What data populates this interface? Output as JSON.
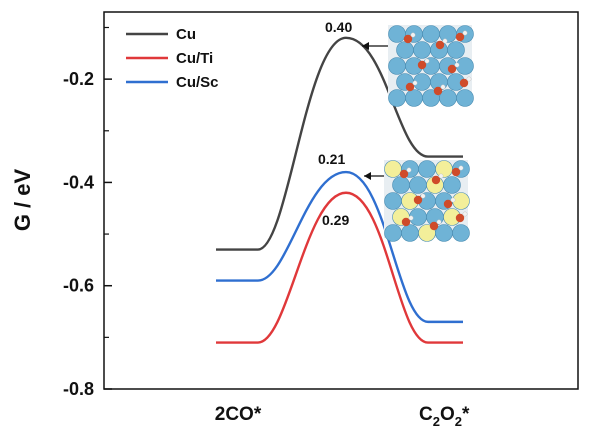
{
  "chart_data": {
    "type": "line",
    "ylabel": "G / eV",
    "ylim": [
      -0.8,
      -0.07
    ],
    "yticks": [
      -0.2,
      -0.4,
      -0.6,
      -0.8
    ],
    "ytick_labels": [
      "-0.2",
      "-0.4",
      "-0.6",
      "-0.8"
    ],
    "categories": [
      "2CO*",
      "C2O2*"
    ],
    "category_labels": {
      "left": "2CO*",
      "right_main_1": "C",
      "right_sub_1": "2",
      "right_main_2": "O",
      "right_sub_2": "2",
      "right_suffix": "*"
    },
    "series": [
      {
        "name": "Cu",
        "color": "#444444",
        "initial": -0.53,
        "ts": -0.12,
        "final": -0.35,
        "barrier_label": "0.40"
      },
      {
        "name": "Cu/Ti",
        "color": "#e0383a",
        "initial": -0.71,
        "ts": -0.42,
        "final": -0.71,
        "barrier_label": "0.29"
      },
      {
        "name": "Cu/Sc",
        "color": "#2f6fd0",
        "initial": -0.59,
        "ts": -0.38,
        "final": -0.67,
        "barrier_label": "0.21"
      }
    ],
    "legend_position": "top-left",
    "grid": false
  },
  "colors": {
    "cu_atom": "#6fb3d6",
    "o_atom": "#cf4b2a",
    "h_atom": "#f2f2f2",
    "dopant": "#f3ef9a"
  }
}
